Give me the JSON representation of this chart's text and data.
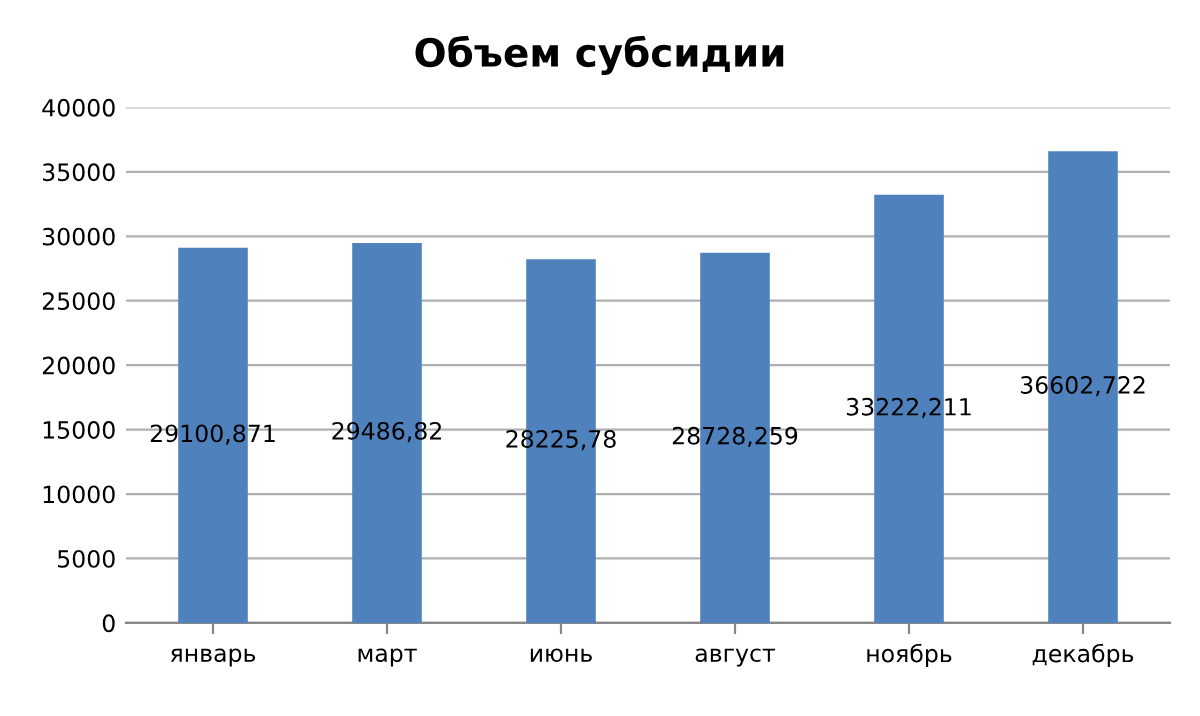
{
  "chart_data": {
    "type": "bar",
    "title": "Объем субсидии",
    "categories": [
      "январь",
      "март",
      "июнь",
      "август",
      "ноябрь",
      "декабрь"
    ],
    "values": [
      29100.871,
      29486.82,
      28225.78,
      28728.259,
      33222.211,
      36602.722
    ],
    "value_labels": [
      "29100,871",
      "29486,82",
      "28225,78",
      "28728,259",
      "33222,211",
      "36602,722"
    ],
    "color": "#4f81bd",
    "ylim": [
      0,
      40000
    ],
    "yticks": [
      0,
      5000,
      10000,
      15000,
      20000,
      25000,
      30000,
      35000,
      40000
    ],
    "grid": "y",
    "legend": false
  }
}
